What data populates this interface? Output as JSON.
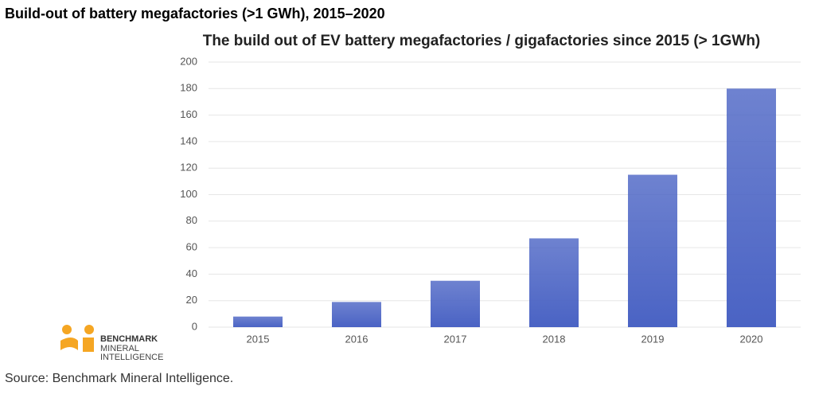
{
  "header": {
    "title": "Build-out of battery megafactories (>1 GWh), 2015–2020"
  },
  "chart_data": {
    "type": "bar",
    "title": "The build out of EV battery megafactories / gigafactories since 2015 (> 1GWh)",
    "categories": [
      "2015",
      "2016",
      "2017",
      "2018",
      "2019",
      "2020"
    ],
    "values": [
      8,
      19,
      35,
      67,
      115,
      180
    ],
    "color": "#4a63c4",
    "ylim": [
      0,
      200
    ],
    "yticks": [
      0,
      20,
      40,
      60,
      80,
      100,
      120,
      140,
      160,
      180,
      200
    ],
    "grid": true
  },
  "logo": {
    "lines": [
      "BENCHMARK",
      "MINERAL",
      "INTELLIGENCE"
    ]
  },
  "source": "Source: Benchmark Mineral Intelligence."
}
